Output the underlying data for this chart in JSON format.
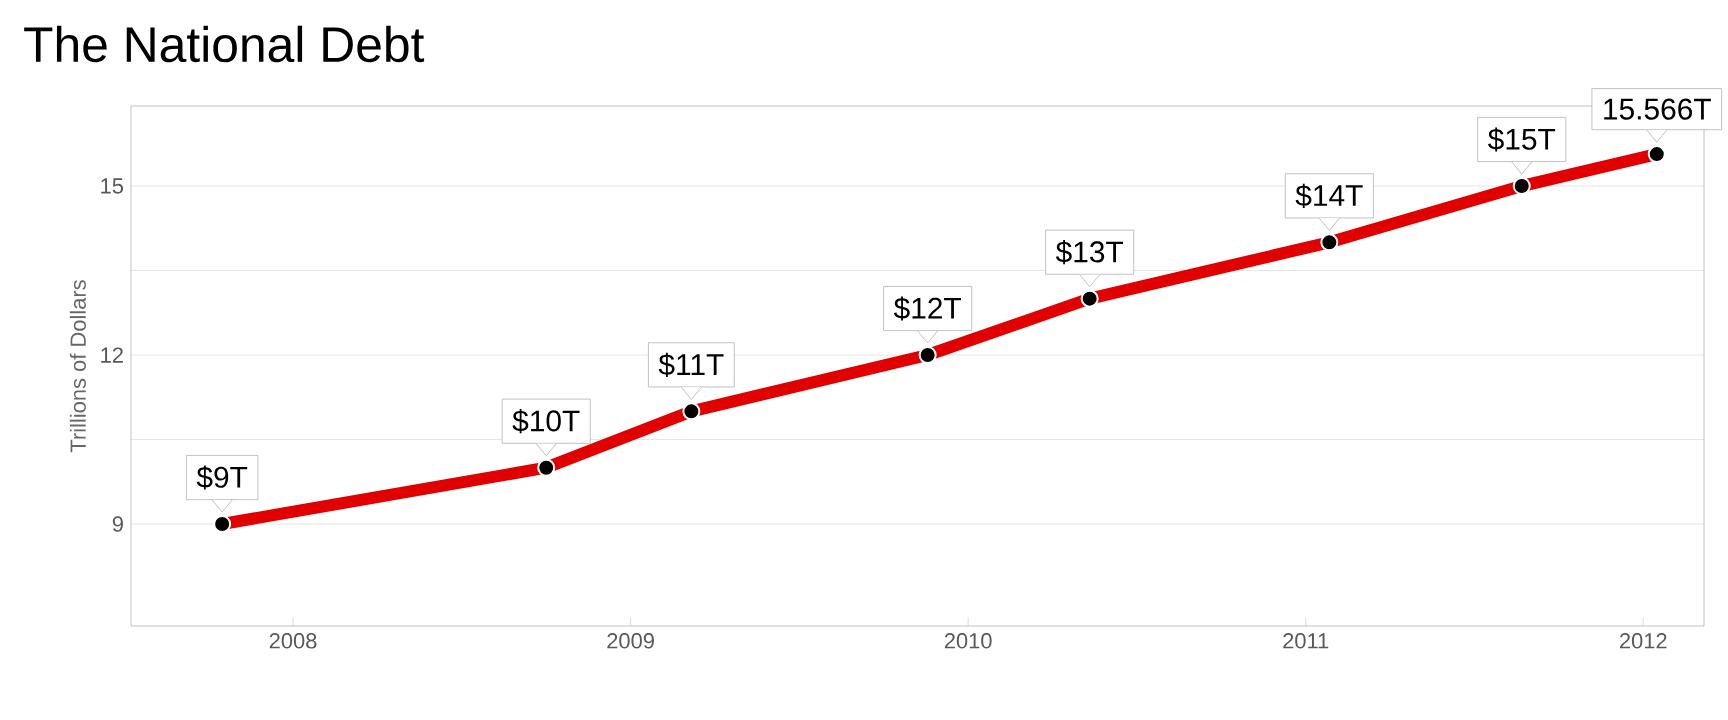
{
  "chart_data": {
    "type": "line",
    "title": "The National Debt",
    "ylabel": "Trillions of Dollars",
    "x": [
      2007.79,
      2008.75,
      2009.18,
      2009.88,
      2010.36,
      2011.07,
      2011.64,
      2012.04
    ],
    "series": [
      {
        "color": "#e00000",
        "values": [
          9,
          10,
          11,
          12,
          13,
          14,
          15,
          15.566
        ],
        "value_labels": [
          "$9T",
          "$10T",
          "$11T",
          "$12T",
          "$13T",
          "$14T",
          "$15T",
          "15.566T"
        ]
      }
    ],
    "xlim": [
      2007.52,
      2012.18
    ],
    "xticks": [
      2008,
      2009,
      2010,
      2011,
      2012
    ],
    "ylim": [
      7.19,
      16.42
    ],
    "yticks": [
      9,
      {
        "value": 10.5,
        "label": null
      },
      12,
      {
        "value": 13.5,
        "label": null
      },
      15
    ],
    "grid": "y",
    "marker": "circle",
    "line_style": "solid"
  }
}
